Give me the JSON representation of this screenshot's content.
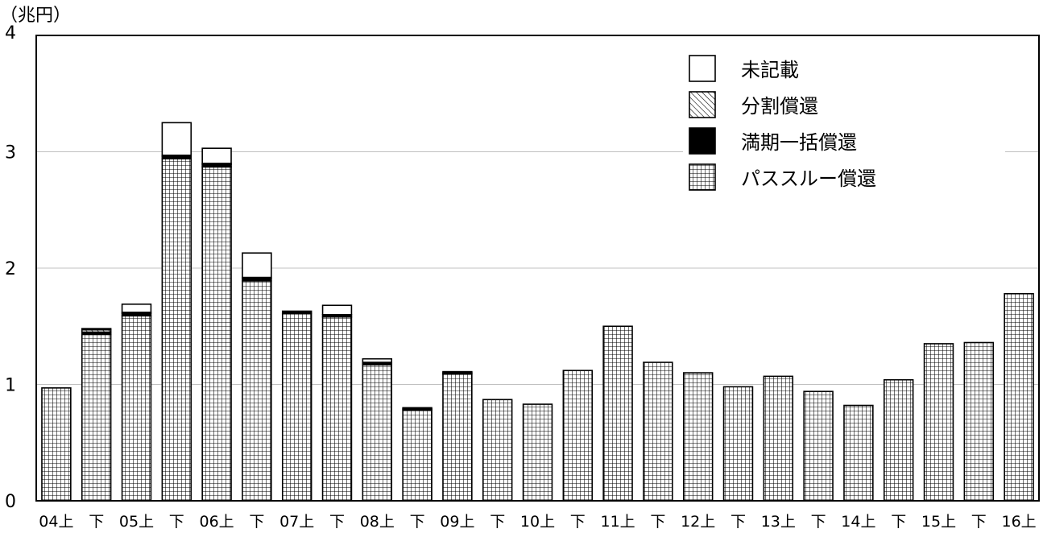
{
  "chart_data": {
    "type": "bar",
    "stacked": true,
    "unit_label": "（兆円）",
    "categories": [
      "04上",
      "下",
      "05上",
      "下",
      "06上",
      "下",
      "07上",
      "下",
      "08上",
      "下",
      "09上",
      "下",
      "10上",
      "下",
      "11上",
      "下",
      "12上",
      "下",
      "13上",
      "下",
      "14上",
      "下",
      "15上",
      "下",
      "16上"
    ],
    "yticks": [
      "0",
      "1",
      "2",
      "3",
      "4"
    ],
    "ylim": [
      0,
      4
    ],
    "grid": true,
    "legend_position": "top-right",
    "series": [
      {
        "name": "パススルー償還",
        "pattern": "grid",
        "values": [
          0.97,
          1.43,
          1.59,
          2.94,
          2.87,
          1.89,
          1.61,
          1.58,
          1.17,
          0.78,
          1.09,
          0.87,
          0.83,
          1.12,
          1.5,
          1.19,
          1.1,
          0.98,
          1.07,
          0.94,
          0.82,
          1.04,
          1.35,
          1.36,
          1.78
        ]
      },
      {
        "name": "満期一括償還",
        "pattern": "solid",
        "values": [
          0,
          0.02,
          0.02,
          0.02,
          0.02,
          0.02,
          0.02,
          0.02,
          0.01,
          0,
          0.01,
          0,
          0,
          0,
          0,
          0,
          0,
          0,
          0,
          0,
          0,
          0,
          0,
          0,
          0
        ]
      },
      {
        "name": "分割償還",
        "pattern": "hatch",
        "values": [
          0,
          0.02,
          0.01,
          0.01,
          0.01,
          0.01,
          0,
          0,
          0.01,
          0.01,
          0.01,
          0,
          0,
          0,
          0,
          0,
          0,
          0,
          0,
          0,
          0,
          0,
          0,
          0,
          0
        ]
      },
      {
        "name": "未記載",
        "pattern": "white",
        "values": [
          0,
          0.01,
          0.07,
          0.28,
          0.13,
          0.21,
          0,
          0.08,
          0.03,
          0.01,
          0,
          0,
          0,
          0,
          0,
          0,
          0,
          0,
          0,
          0,
          0,
          0,
          0,
          0,
          0
        ]
      }
    ],
    "legend_order": [
      "未記載",
      "分割償還",
      "満期一括償還",
      "パススルー償還"
    ],
    "colors": {
      "frame": "#000000",
      "grid_line": "#c0c0c0",
      "solid": "#000000",
      "white": "#ffffff",
      "pattern_line": "#000000"
    }
  }
}
